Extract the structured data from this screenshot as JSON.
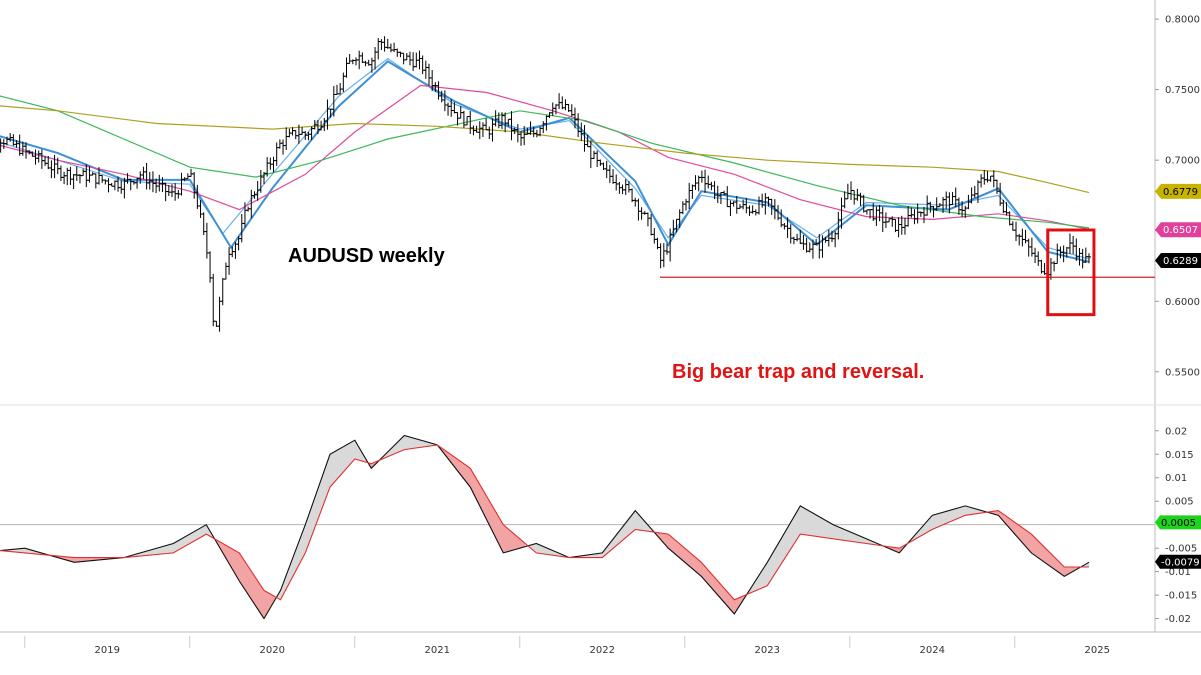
{
  "chart_data": [
    {
      "type": "candlestick",
      "title": "AUDUSD weekly",
      "annotation": "Big bear trap and reversal.",
      "x_labels": [
        "2019",
        "2020",
        "2021",
        "2022",
        "2023",
        "2024",
        "2025"
      ],
      "ylim": [
        0.53,
        0.81
      ],
      "y_ticks": [
        "0.8000",
        "0.7500",
        "0.7000",
        "0.6500",
        "0.6000",
        "0.5500"
      ],
      "support_level": 0.617,
      "current_price": "0.6289",
      "series_tags": [
        {
          "value": "0.6779",
          "color": "#c8b400"
        },
        {
          "value": "0.6507",
          "color": "#e0409a"
        },
        {
          "value": "0.6289",
          "color": "#000000"
        }
      ],
      "price_path": [
        [
          2018.7,
          0.722
        ],
        [
          2018.9,
          0.713
        ],
        [
          2019.0,
          0.706
        ],
        [
          2019.1,
          0.7
        ],
        [
          2019.2,
          0.692
        ],
        [
          2019.4,
          0.688
        ],
        [
          2019.5,
          0.685
        ],
        [
          2019.6,
          0.683
        ],
        [
          2019.7,
          0.69
        ],
        [
          2019.8,
          0.682
        ],
        [
          2019.9,
          0.675
        ],
        [
          2020.0,
          0.69
        ],
        [
          2020.05,
          0.668
        ],
        [
          2020.12,
          0.625
        ],
        [
          2020.15,
          0.575
        ],
        [
          2020.19,
          0.605
        ],
        [
          2020.23,
          0.635
        ],
        [
          2020.3,
          0.645
        ],
        [
          2020.35,
          0.668
        ],
        [
          2020.45,
          0.69
        ],
        [
          2020.55,
          0.712
        ],
        [
          2020.65,
          0.72
        ],
        [
          2020.7,
          0.718
        ],
        [
          2020.8,
          0.728
        ],
        [
          2020.9,
          0.748
        ],
        [
          2020.95,
          0.765
        ],
        [
          2021.0,
          0.775
        ],
        [
          2021.1,
          0.77
        ],
        [
          2021.15,
          0.785
        ],
        [
          2021.25,
          0.775
        ],
        [
          2021.4,
          0.768
        ],
        [
          2021.5,
          0.75
        ],
        [
          2021.6,
          0.735
        ],
        [
          2021.7,
          0.725
        ],
        [
          2021.8,
          0.72
        ],
        [
          2021.9,
          0.73
        ],
        [
          2022.0,
          0.715
        ],
        [
          2022.1,
          0.72
        ],
        [
          2022.2,
          0.74
        ],
        [
          2022.3,
          0.735
        ],
        [
          2022.4,
          0.71
        ],
        [
          2022.5,
          0.692
        ],
        [
          2022.6,
          0.685
        ],
        [
          2022.7,
          0.672
        ],
        [
          2022.8,
          0.65
        ],
        [
          2022.85,
          0.628
        ],
        [
          2022.9,
          0.64
        ],
        [
          2023.0,
          0.672
        ],
        [
          2023.1,
          0.69
        ],
        [
          2023.2,
          0.675
        ],
        [
          2023.3,
          0.668
        ],
        [
          2023.4,
          0.665
        ],
        [
          2023.5,
          0.67
        ],
        [
          2023.6,
          0.655
        ],
        [
          2023.7,
          0.64
        ],
        [
          2023.8,
          0.638
        ],
        [
          2023.9,
          0.648
        ],
        [
          2024.0,
          0.68
        ],
        [
          2024.1,
          0.665
        ],
        [
          2024.2,
          0.658
        ],
        [
          2024.3,
          0.652
        ],
        [
          2024.4,
          0.662
        ],
        [
          2024.5,
          0.668
        ],
        [
          2024.6,
          0.672
        ],
        [
          2024.7,
          0.665
        ],
        [
          2024.8,
          0.686
        ],
        [
          2024.85,
          0.69
        ],
        [
          2024.9,
          0.675
        ],
        [
          2025.0,
          0.65
        ],
        [
          2025.1,
          0.635
        ],
        [
          2025.15,
          0.625
        ],
        [
          2025.2,
          0.622
        ],
        [
          2025.25,
          0.632
        ],
        [
          2025.3,
          0.637
        ],
        [
          2025.35,
          0.64
        ],
        [
          2025.4,
          0.63
        ],
        [
          2025.45,
          0.629
        ]
      ],
      "moving_averages": [
        {
          "color": "#6ab0e8",
          "width": 1.2,
          "points": [
            [
              2018.7,
              0.718
            ],
            [
              2019.2,
              0.7
            ],
            [
              2019.6,
              0.685
            ],
            [
              2020.0,
              0.683
            ],
            [
              2020.2,
              0.648
            ],
            [
              2020.5,
              0.69
            ],
            [
              2020.9,
              0.745
            ],
            [
              2021.2,
              0.772
            ],
            [
              2021.6,
              0.74
            ],
            [
              2022.0,
              0.722
            ],
            [
              2022.3,
              0.728
            ],
            [
              2022.7,
              0.68
            ],
            [
              2022.9,
              0.645
            ],
            [
              2023.1,
              0.675
            ],
            [
              2023.5,
              0.668
            ],
            [
              2023.8,
              0.645
            ],
            [
              2024.1,
              0.67
            ],
            [
              2024.6,
              0.668
            ],
            [
              2024.9,
              0.675
            ],
            [
              2025.2,
              0.638
            ],
            [
              2025.45,
              0.63
            ]
          ]
        },
        {
          "color": "#3d8fd6",
          "width": 2.0,
          "points": [
            [
              2018.7,
              0.722
            ],
            [
              2019.2,
              0.705
            ],
            [
              2019.6,
              0.686
            ],
            [
              2020.0,
              0.686
            ],
            [
              2020.25,
              0.638
            ],
            [
              2020.5,
              0.68
            ],
            [
              2020.9,
              0.738
            ],
            [
              2021.2,
              0.77
            ],
            [
              2021.6,
              0.742
            ],
            [
              2022.0,
              0.72
            ],
            [
              2022.3,
              0.73
            ],
            [
              2022.7,
              0.685
            ],
            [
              2022.9,
              0.64
            ],
            [
              2023.1,
              0.678
            ],
            [
              2023.5,
              0.67
            ],
            [
              2023.8,
              0.64
            ],
            [
              2024.1,
              0.668
            ],
            [
              2024.6,
              0.665
            ],
            [
              2024.9,
              0.68
            ],
            [
              2025.2,
              0.635
            ],
            [
              2025.45,
              0.628
            ]
          ]
        },
        {
          "color": "#e04a9a",
          "width": 1.2,
          "points": [
            [
              2018.7,
              0.715
            ],
            [
              2019.2,
              0.7
            ],
            [
              2019.6,
              0.69
            ],
            [
              2020.0,
              0.678
            ],
            [
              2020.3,
              0.665
            ],
            [
              2020.7,
              0.69
            ],
            [
              2021.0,
              0.72
            ],
            [
              2021.4,
              0.753
            ],
            [
              2021.8,
              0.748
            ],
            [
              2022.2,
              0.735
            ],
            [
              2022.6,
              0.72
            ],
            [
              2022.9,
              0.702
            ],
            [
              2023.3,
              0.69
            ],
            [
              2023.7,
              0.672
            ],
            [
              2024.1,
              0.66
            ],
            [
              2024.5,
              0.658
            ],
            [
              2024.9,
              0.662
            ],
            [
              2025.2,
              0.657
            ],
            [
              2025.45,
              0.651
            ]
          ]
        },
        {
          "color": "#3cb85a",
          "width": 1.2,
          "points": [
            [
              2018.7,
              0.75
            ],
            [
              2019.2,
              0.735
            ],
            [
              2019.6,
              0.715
            ],
            [
              2020.0,
              0.695
            ],
            [
              2020.4,
              0.688
            ],
            [
              2020.8,
              0.7
            ],
            [
              2021.2,
              0.715
            ],
            [
              2021.6,
              0.725
            ],
            [
              2022.0,
              0.735
            ],
            [
              2022.4,
              0.728
            ],
            [
              2022.8,
              0.712
            ],
            [
              2023.3,
              0.698
            ],
            [
              2023.8,
              0.682
            ],
            [
              2024.3,
              0.668
            ],
            [
              2024.8,
              0.66
            ],
            [
              2025.2,
              0.656
            ],
            [
              2025.45,
              0.652
            ]
          ]
        },
        {
          "color": "#b0a020",
          "width": 1.2,
          "points": [
            [
              2018.7,
              0.74
            ],
            [
              2019.2,
              0.735
            ],
            [
              2019.8,
              0.726
            ],
            [
              2020.5,
              0.722
            ],
            [
              2021.0,
              0.726
            ],
            [
              2021.5,
              0.724
            ],
            [
              2022.0,
              0.72
            ],
            [
              2022.5,
              0.712
            ],
            [
              2023.0,
              0.705
            ],
            [
              2023.5,
              0.7
            ],
            [
              2024.0,
              0.697
            ],
            [
              2024.5,
              0.695
            ],
            [
              2024.9,
              0.692
            ],
            [
              2025.2,
              0.684
            ],
            [
              2025.45,
              0.677
            ]
          ]
        }
      ]
    },
    {
      "type": "line",
      "ylim": [
        -0.022,
        0.024
      ],
      "y_ticks": [
        "0.02",
        "0.015",
        "0.01",
        "0.005",
        "-0.005",
        "-0.01",
        "-0.015",
        "-0.02"
      ],
      "tags": [
        {
          "value": "0.0005",
          "color": "#1dd41d"
        },
        {
          "value": "-0.0079",
          "color": "#000000"
        }
      ],
      "series": [
        {
          "color": "#111111",
          "points": [
            [
              2018.7,
              -0.006
            ],
            [
              2019.0,
              -0.005
            ],
            [
              2019.3,
              -0.008
            ],
            [
              2019.6,
              -0.007
            ],
            [
              2019.9,
              -0.004
            ],
            [
              2020.1,
              0.0
            ],
            [
              2020.3,
              -0.012
            ],
            [
              2020.45,
              -0.02
            ],
            [
              2020.55,
              -0.014
            ],
            [
              2020.7,
              0.0
            ],
            [
              2020.85,
              0.015
            ],
            [
              2021.0,
              0.018
            ],
            [
              2021.1,
              0.012
            ],
            [
              2021.3,
              0.019
            ],
            [
              2021.5,
              0.017
            ],
            [
              2021.7,
              0.008
            ],
            [
              2021.9,
              -0.006
            ],
            [
              2022.1,
              -0.004
            ],
            [
              2022.3,
              -0.007
            ],
            [
              2022.5,
              -0.006
            ],
            [
              2022.7,
              0.003
            ],
            [
              2022.9,
              -0.005
            ],
            [
              2023.1,
              -0.011
            ],
            [
              2023.3,
              -0.019
            ],
            [
              2023.5,
              -0.008
            ],
            [
              2023.7,
              0.004
            ],
            [
              2023.9,
              0.0
            ],
            [
              2024.1,
              -0.003
            ],
            [
              2024.3,
              -0.006
            ],
            [
              2024.5,
              0.002
            ],
            [
              2024.7,
              0.004
            ],
            [
              2024.9,
              0.002
            ],
            [
              2025.1,
              -0.006
            ],
            [
              2025.3,
              -0.011
            ],
            [
              2025.45,
              -0.008
            ]
          ]
        },
        {
          "color": "#e03030",
          "points": [
            [
              2018.7,
              -0.005
            ],
            [
              2019.0,
              -0.006
            ],
            [
              2019.3,
              -0.007
            ],
            [
              2019.6,
              -0.007
            ],
            [
              2019.9,
              -0.006
            ],
            [
              2020.1,
              -0.002
            ],
            [
              2020.3,
              -0.006
            ],
            [
              2020.45,
              -0.014
            ],
            [
              2020.55,
              -0.016
            ],
            [
              2020.7,
              -0.006
            ],
            [
              2020.85,
              0.008
            ],
            [
              2021.0,
              0.014
            ],
            [
              2021.1,
              0.013
            ],
            [
              2021.3,
              0.016
            ],
            [
              2021.5,
              0.017
            ],
            [
              2021.7,
              0.012
            ],
            [
              2021.9,
              0.0
            ],
            [
              2022.1,
              -0.006
            ],
            [
              2022.3,
              -0.007
            ],
            [
              2022.5,
              -0.007
            ],
            [
              2022.7,
              -0.001
            ],
            [
              2022.9,
              -0.002
            ],
            [
              2023.1,
              -0.008
            ],
            [
              2023.3,
              -0.016
            ],
            [
              2023.5,
              -0.013
            ],
            [
              2023.7,
              -0.002
            ],
            [
              2023.9,
              -0.003
            ],
            [
              2024.1,
              -0.004
            ],
            [
              2024.3,
              -0.005
            ],
            [
              2024.5,
              -0.001
            ],
            [
              2024.7,
              0.002
            ],
            [
              2024.9,
              0.003
            ],
            [
              2025.1,
              -0.002
            ],
            [
              2025.3,
              -0.009
            ],
            [
              2025.45,
              -0.009
            ]
          ]
        }
      ]
    }
  ]
}
